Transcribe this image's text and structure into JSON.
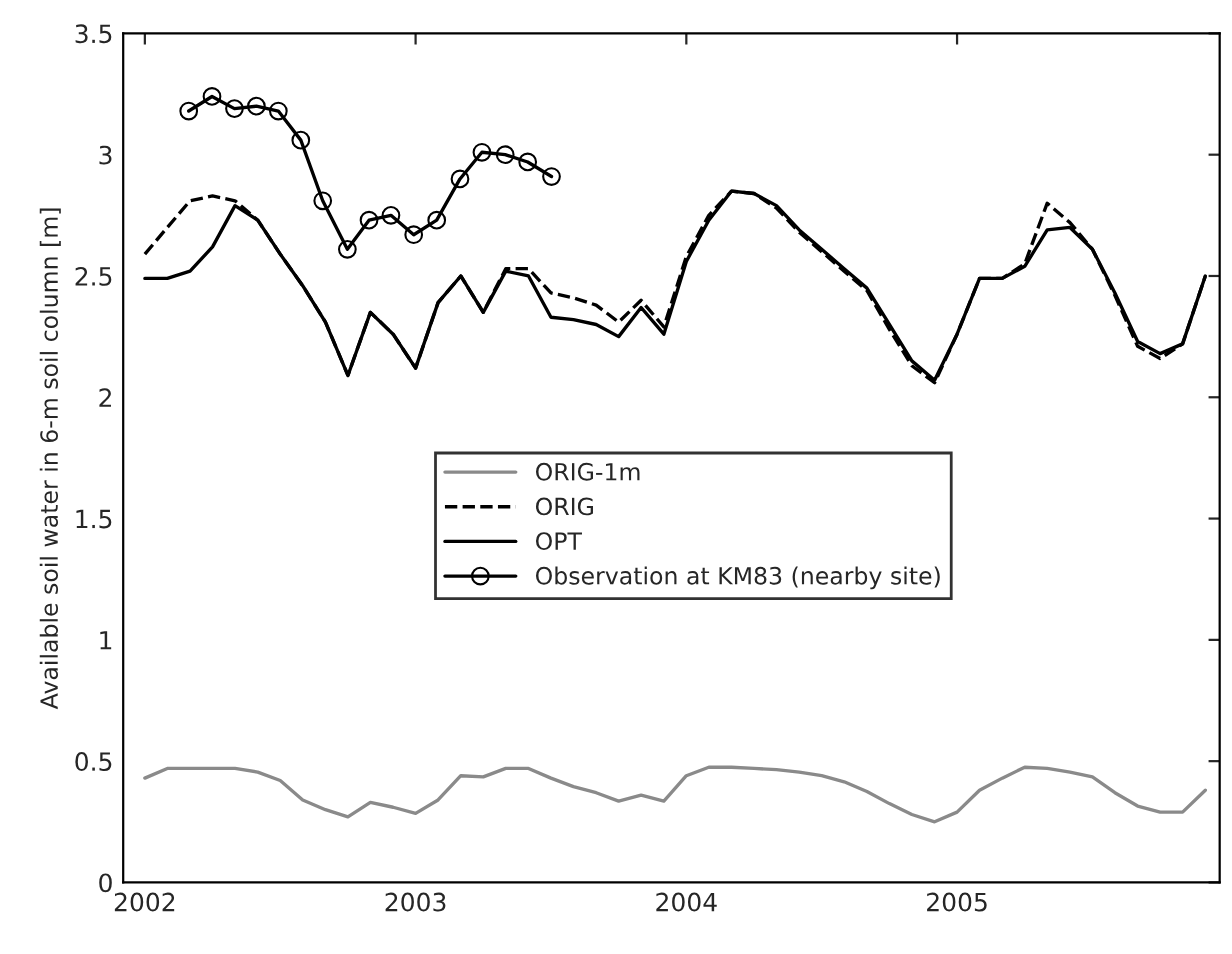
{
  "chart_data": {
    "type": "line",
    "ylabel": "Available soil water in 6-m soil column [m]",
    "xlim": [
      2001.92,
      2005.97
    ],
    "ylim": [
      0,
      3.5
    ],
    "xticks": [
      2002,
      2003,
      2004,
      2005
    ],
    "yticks": [
      0,
      0.5,
      1,
      1.5,
      2,
      2.5,
      3,
      3.5
    ],
    "grid": false,
    "legend": "center",
    "series": [
      {
        "name": "ORIG-1m",
        "color": "#8a8a8a",
        "line_style": "solid",
        "marker": "none",
        "values": [
          0.43,
          0.47,
          0.47,
          0.47,
          0.47,
          0.455,
          0.42,
          0.34,
          0.3,
          0.27,
          0.33,
          0.31,
          0.285,
          0.34,
          0.44,
          0.435,
          0.47,
          0.47,
          0.43,
          0.395,
          0.37,
          0.335,
          0.36,
          0.335,
          0.44,
          0.475,
          0.475,
          0.47,
          0.465,
          0.455,
          0.44,
          0.415,
          0.375,
          0.325,
          0.28,
          0.25,
          0.29,
          0.38,
          0.43,
          0.475,
          0.47,
          0.455,
          0.435,
          0.37,
          0.315,
          0.29,
          0.29,
          0.38
        ]
      },
      {
        "name": "ORIG",
        "color": "#000000",
        "line_style": "dashed",
        "marker": "none",
        "values": [
          2.59,
          2.7,
          2.81,
          2.83,
          2.81,
          2.73,
          2.59,
          2.46,
          2.31,
          2.09,
          2.35,
          2.26,
          2.12,
          2.39,
          2.5,
          2.35,
          2.53,
          2.53,
          2.43,
          2.41,
          2.38,
          2.31,
          2.4,
          2.29,
          2.58,
          2.75,
          2.85,
          2.84,
          2.78,
          2.68,
          2.6,
          2.52,
          2.44,
          2.28,
          2.13,
          2.06,
          2.26,
          2.49,
          2.49,
          2.55,
          2.8,
          2.72,
          2.61,
          2.42,
          2.21,
          2.16,
          2.22,
          2.5
        ]
      },
      {
        "name": "OPT",
        "color": "#000000",
        "line_style": "solid",
        "marker": "none",
        "values": [
          2.49,
          2.49,
          2.52,
          2.62,
          2.79,
          2.73,
          2.59,
          2.46,
          2.31,
          2.09,
          2.35,
          2.26,
          2.12,
          2.39,
          2.5,
          2.35,
          2.52,
          2.5,
          2.33,
          2.32,
          2.3,
          2.25,
          2.37,
          2.26,
          2.56,
          2.73,
          2.85,
          2.84,
          2.79,
          2.69,
          2.61,
          2.53,
          2.45,
          2.3,
          2.15,
          2.07,
          2.26,
          2.49,
          2.49,
          2.54,
          2.69,
          2.7,
          2.61,
          2.43,
          2.23,
          2.18,
          2.22,
          2.5
        ]
      },
      {
        "name": "Observation at KM83 (nearby site)",
        "color": "#000000",
        "line_style": "solid",
        "marker": "circle",
        "x": [
          2002.162,
          2002.248,
          2002.331,
          2002.412,
          2002.493,
          2002.576,
          2002.657,
          2002.748,
          2002.828,
          2002.909,
          2002.993,
          2003.078,
          2003.164,
          2003.245,
          2003.331,
          2003.414,
          2003.502
        ],
        "values": [
          3.18,
          3.24,
          3.19,
          3.2,
          3.18,
          3.06,
          2.81,
          2.61,
          2.73,
          2.75,
          2.67,
          2.73,
          2.9,
          3.01,
          3.0,
          2.97,
          2.91
        ]
      }
    ],
    "x": [
      2002.0,
      2002.083,
      2002.167,
      2002.25,
      2002.333,
      2002.417,
      2002.5,
      2002.583,
      2002.667,
      2002.75,
      2002.833,
      2002.917,
      2003.0,
      2003.083,
      2003.167,
      2003.25,
      2003.333,
      2003.417,
      2003.5,
      2003.583,
      2003.667,
      2003.75,
      2003.833,
      2003.917,
      2004.0,
      2004.083,
      2004.167,
      2004.25,
      2004.333,
      2004.417,
      2004.5,
      2004.583,
      2004.667,
      2004.75,
      2004.833,
      2004.917,
      2005.0,
      2005.083,
      2005.167,
      2005.25,
      2005.333,
      2005.417,
      2005.5,
      2005.583,
      2005.667,
      2005.75,
      2005.833,
      2005.917
    ]
  }
}
